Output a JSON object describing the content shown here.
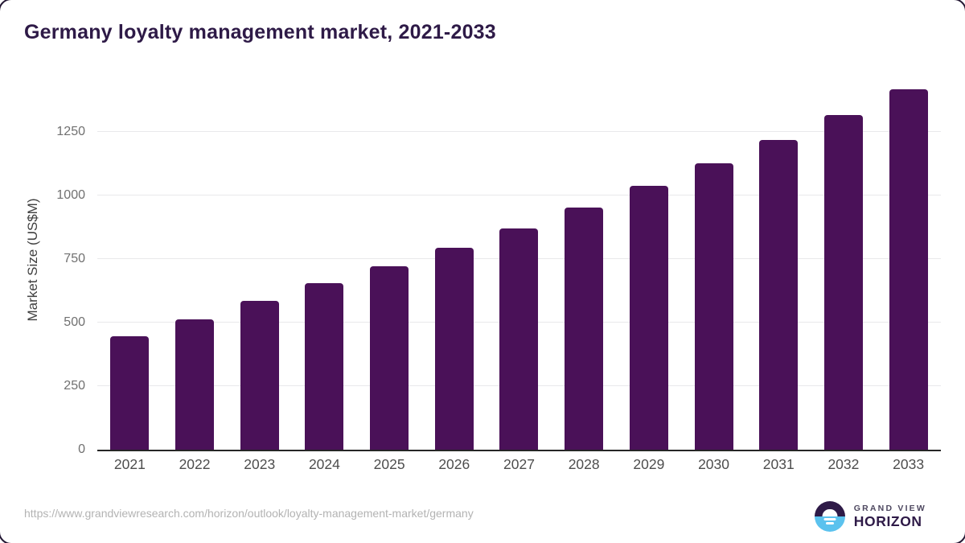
{
  "title": "Germany loyalty management market, 2021-2033",
  "chart_data": {
    "type": "bar",
    "title": "Germany loyalty management market, 2021-2033",
    "categories": [
      "2021",
      "2022",
      "2023",
      "2024",
      "2025",
      "2026",
      "2027",
      "2028",
      "2029",
      "2030",
      "2031",
      "2032",
      "2033"
    ],
    "values": [
      447,
      514,
      587,
      654,
      722,
      793,
      870,
      951,
      1038,
      1127,
      1218,
      1317,
      1419
    ],
    "xlabel": "",
    "ylabel": "Market Size (US$M)",
    "yticks": [
      0,
      250,
      500,
      750,
      1000,
      1250
    ],
    "ylim": [
      0,
      1487
    ],
    "grid": "horizontal",
    "legend": "none",
    "bar_color": "#4a1158",
    "axis_color": "#262626",
    "gridline_color": "#e9e9eb"
  },
  "footer": {
    "source_url": "https://www.grandviewresearch.com/horizon/outlook/loyalty-management-market/germany",
    "logo": {
      "line1": "GRAND VIEW",
      "line2": "HORIZON",
      "icon_top_color": "#2e1a47",
      "icon_bottom_color": "#5bc2ee"
    }
  },
  "colors": {
    "title": "#2e1a47",
    "bar": "#4a1158",
    "tick_text": "#707070",
    "x_label_text": "#4d4d4d",
    "url_text": "#b3b3b3"
  }
}
